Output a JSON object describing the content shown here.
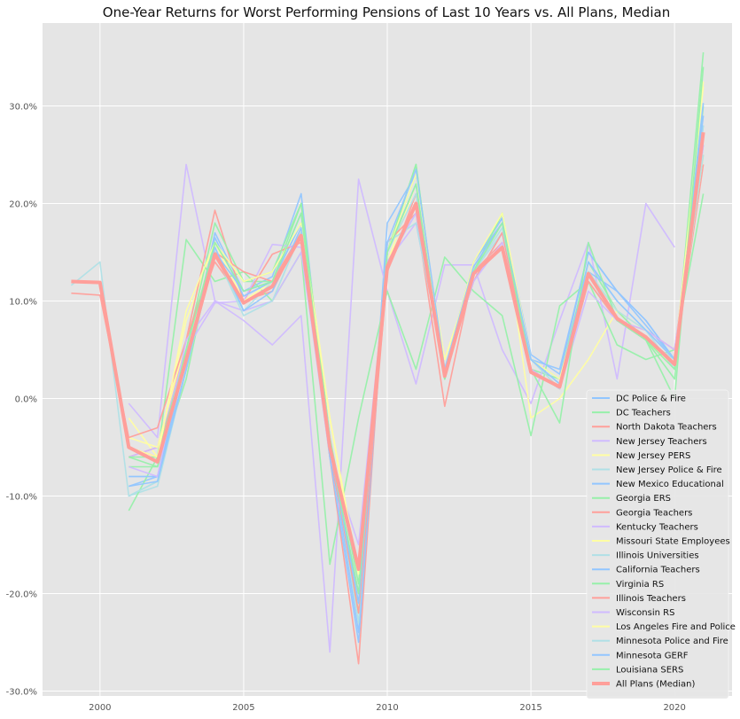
{
  "chart_data": {
    "type": "line",
    "title": "One-Year Returns for Worst Performing Pensions of Last 10 Years vs. All Plans, Median",
    "xlabel": "",
    "ylabel": "",
    "xlim": [
      1998.0,
      2022.0
    ],
    "ylim": [
      -0.305,
      0.385
    ],
    "x_ticks": [
      2000,
      2005,
      2010,
      2015,
      2020
    ],
    "x_tick_labels": [
      "2000",
      "2005",
      "2010",
      "2015",
      "2020"
    ],
    "y_ticks": [
      -0.3,
      -0.2,
      -0.1,
      0.0,
      0.1,
      0.2,
      0.3
    ],
    "y_tick_labels": [
      "-30.0%",
      "-20.0%",
      "-10.0%",
      "0.0%",
      "10.0%",
      "20.0%",
      "30.0%"
    ],
    "grid": true,
    "legend_position": "bottom-right",
    "series": [
      {
        "name": "DC Police & Fire",
        "color": "#92c6ff",
        "x": [
          2001,
          2002,
          2003,
          2004,
          2005,
          2006,
          2007,
          2008,
          2009,
          2010,
          2011,
          2012,
          2013,
          2014,
          2015,
          2016,
          2017,
          2018,
          2019,
          2020,
          2021
        ],
        "y": [
          -0.09,
          -0.08,
          0.03,
          0.17,
          0.11,
          0.125,
          0.21,
          -0.05,
          -0.24,
          0.18,
          0.23,
          0.02,
          0.14,
          0.185,
          0.04,
          0.03,
          0.15,
          0.11,
          0.08,
          0.04,
          0.28
        ]
      },
      {
        "name": "DC Teachers",
        "color": "#97f0aa",
        "x": [
          2001,
          2002,
          2003,
          2004,
          2005,
          2006,
          2007,
          2008,
          2009,
          2010,
          2011,
          2012,
          2013,
          2014,
          2015,
          2016,
          2017,
          2018,
          2019,
          2020,
          2021
        ],
        "y": [
          -0.07,
          -0.07,
          0.02,
          0.16,
          0.12,
          0.12,
          0.2,
          -0.04,
          -0.22,
          0.15,
          0.24,
          0.02,
          0.13,
          0.19,
          0.03,
          0.02,
          0.14,
          0.09,
          0.06,
          0.02,
          0.3
        ]
      },
      {
        "name": "North Dakota Teachers",
        "color": "#ff9f9a",
        "x": [
          2001,
          2002,
          2003,
          2004,
          2005,
          2006,
          2007,
          2008,
          2009,
          2010,
          2011,
          2012,
          2013,
          2014,
          2015,
          2016,
          2017,
          2018,
          2019,
          2020,
          2021
        ],
        "y": [
          -0.05,
          -0.06,
          0.06,
          0.14,
          0.1,
          0.11,
          0.17,
          -0.06,
          -0.2,
          0.13,
          0.21,
          0.03,
          0.12,
          0.17,
          0.03,
          0.01,
          0.12,
          0.08,
          0.06,
          0.04,
          0.25
        ]
      },
      {
        "name": "New Jersey Teachers",
        "color": "#d0bbff",
        "x": [
          2001,
          2002,
          2003,
          2004,
          2005,
          2006,
          2007,
          2008,
          2009,
          2010,
          2011,
          2012,
          2013,
          2014,
          2015,
          2016,
          2017,
          2018,
          2019,
          2020,
          2021
        ],
        "y": [
          -0.005,
          -0.04,
          0.24,
          0.1,
          0.08,
          0.055,
          0.085,
          -0.26,
          0.225,
          0.11,
          0.015,
          0.137,
          0.137,
          0.05,
          -0.005,
          0.08,
          0.16,
          0.02,
          0.2,
          0.155,
          null
        ]
      },
      {
        "name": "New Jersey PERS",
        "color": "#fffea3",
        "x": [
          2001,
          2002,
          2003,
          2004,
          2005,
          2006,
          2007,
          2008,
          2009,
          2010,
          2011,
          2012,
          2013,
          2014,
          2015,
          2016,
          2017,
          2018,
          2019,
          2020,
          2021
        ],
        "y": [
          -0.02,
          -0.06,
          0.08,
          0.16,
          0.1,
          0.12,
          0.19,
          -0.02,
          -0.18,
          0.14,
          0.22,
          0.04,
          0.13,
          0.19,
          -0.02,
          0.0,
          0.04,
          0.09,
          0.06,
          0.03,
          0.325
        ]
      },
      {
        "name": "New Jersey Police & Fire",
        "color": "#b0e0e6",
        "x": [
          2001,
          2002,
          2003,
          2004,
          2005,
          2006,
          2007,
          2008,
          2009,
          2010,
          2011,
          2012,
          2013,
          2014,
          2015,
          2016,
          2017,
          2018,
          2019,
          2020,
          2021
        ],
        "y": [
          -0.1,
          -0.09,
          0.03,
          0.15,
          0.09,
          0.12,
          0.18,
          -0.04,
          -0.23,
          0.15,
          0.21,
          0.03,
          0.13,
          0.17,
          0.04,
          0.01,
          0.14,
          0.1,
          0.07,
          0.03,
          0.27
        ]
      },
      {
        "name": "New Mexico Educational",
        "color": "#92c6ff",
        "x": [
          2001,
          2002,
          2003,
          2004,
          2005,
          2006,
          2007,
          2008,
          2009,
          2010,
          2011,
          2012,
          2013,
          2014,
          2015,
          2016,
          2017,
          2018,
          2019,
          2020,
          2021
        ],
        "y": [
          -0.08,
          -0.08,
          0.04,
          0.15,
          0.11,
          0.12,
          0.18,
          -0.05,
          -0.2,
          0.15,
          0.22,
          0.03,
          0.14,
          0.18,
          0.04,
          0.02,
          0.13,
          0.11,
          0.08,
          0.04,
          0.26
        ]
      },
      {
        "name": "Georgia ERS",
        "color": "#97f0aa",
        "x": [
          2001,
          2002,
          2003,
          2004,
          2005,
          2006,
          2007,
          2008,
          2009,
          2010,
          2011,
          2012,
          2013,
          2014,
          2015,
          2016,
          2017,
          2018,
          2019,
          2020,
          2021
        ],
        "y": [
          -0.115,
          -0.06,
          0.163,
          0.12,
          0.13,
          0.1,
          0.15,
          -0.17,
          -0.02,
          0.11,
          0.03,
          0.145,
          0.11,
          0.085,
          -0.038,
          0.095,
          0.12,
          0.055,
          0.04,
          0.05,
          0.21
        ]
      },
      {
        "name": "Georgia Teachers",
        "color": "#ff9f9a",
        "x": [
          2001,
          2002,
          2003,
          2004,
          2005,
          2006,
          2007,
          2008,
          2009,
          2010,
          2011,
          2012,
          2013,
          2014,
          2015,
          2016,
          2017,
          2018,
          2019,
          2020,
          2021
        ],
        "y": [
          -0.06,
          -0.05,
          0.06,
          0.193,
          0.1,
          0.148,
          0.16,
          -0.06,
          -0.272,
          0.16,
          0.19,
          -0.008,
          0.13,
          0.16,
          0.03,
          0.01,
          0.12,
          0.08,
          0.06,
          0.04,
          0.24
        ]
      },
      {
        "name": "Kentucky Teachers",
        "color": "#d0bbff",
        "x": [
          2001,
          2002,
          2003,
          2004,
          2005,
          2006,
          2007,
          2008,
          2009,
          2010,
          2011,
          2012,
          2013,
          2014,
          2015,
          2016,
          2017,
          2018,
          2019,
          2020,
          2021
        ],
        "y": [
          -0.06,
          -0.05,
          0.05,
          0.098,
          0.1,
          0.158,
          0.155,
          -0.06,
          -0.15,
          0.14,
          0.18,
          0.03,
          0.12,
          0.17,
          0.03,
          0.01,
          0.13,
          0.08,
          0.06,
          0.04,
          0.26
        ]
      },
      {
        "name": "Missouri State Employees",
        "color": "#fffea3",
        "x": [
          2001,
          2002,
          2003,
          2004,
          2005,
          2006,
          2007,
          2008,
          2009,
          2010,
          2011,
          2012,
          2013,
          2014,
          2015,
          2016,
          2017,
          2018,
          2019,
          2020,
          2021
        ],
        "y": [
          -0.04,
          -0.05,
          0.06,
          0.15,
          0.1,
          0.12,
          0.17,
          -0.02,
          -0.19,
          0.14,
          0.2,
          0.04,
          0.13,
          0.18,
          0.03,
          0.01,
          0.12,
          0.08,
          0.06,
          0.04,
          0.25
        ]
      },
      {
        "name": "Illinois Universities",
        "color": "#b0e0e6",
        "x": [
          1999,
          2000,
          2001,
          2002,
          2003,
          2004,
          2005,
          2006,
          2007,
          2008,
          2009,
          2010,
          2011,
          2012,
          2013,
          2014,
          2015,
          2016,
          2017,
          2018,
          2019,
          2020,
          2021
        ],
        "y": [
          0.116,
          0.14,
          -0.1,
          -0.085,
          0.03,
          0.15,
          0.09,
          0.1,
          0.17,
          -0.05,
          -0.21,
          0.14,
          0.19,
          0.03,
          0.12,
          0.17,
          0.03,
          0.01,
          0.12,
          0.08,
          0.06,
          0.04,
          0.25
        ]
      },
      {
        "name": "California Teachers",
        "color": "#92c6ff",
        "x": [
          2001,
          2002,
          2003,
          2004,
          2005,
          2006,
          2007,
          2008,
          2009,
          2010,
          2011,
          2012,
          2013,
          2014,
          2015,
          2016,
          2017,
          2018,
          2019,
          2020,
          2021
        ],
        "y": [
          -0.08,
          -0.08,
          0.03,
          0.165,
          0.105,
          0.12,
          0.19,
          -0.06,
          -0.25,
          0.15,
          0.23,
          0.03,
          0.14,
          0.185,
          0.045,
          0.025,
          0.15,
          0.11,
          0.075,
          0.04,
          0.303
        ]
      },
      {
        "name": "Virginia RS",
        "color": "#97f0aa",
        "x": [
          2001,
          2002,
          2003,
          2004,
          2005,
          2006,
          2007,
          2008,
          2009,
          2010,
          2011,
          2012,
          2013,
          2014,
          2015,
          2016,
          2017,
          2018,
          2019,
          2020,
          2021
        ],
        "y": [
          -0.06,
          -0.06,
          0.05,
          0.18,
          0.12,
          0.13,
          0.2,
          -0.04,
          -0.19,
          0.15,
          0.24,
          0.02,
          0.13,
          0.19,
          0.03,
          0.01,
          0.13,
          0.09,
          0.06,
          0.03,
          0.355
        ]
      },
      {
        "name": "Illinois Teachers",
        "color": "#ff9f9a",
        "x": [
          1999,
          2000,
          2001,
          2002,
          2003,
          2004,
          2005,
          2006,
          2007,
          2008,
          2009,
          2010,
          2011,
          2012,
          2013,
          2014,
          2015,
          2016,
          2017,
          2018,
          2019,
          2020,
          2021
        ],
        "y": [
          0.108,
          0.106,
          -0.04,
          -0.03,
          0.06,
          0.15,
          0.13,
          0.12,
          0.17,
          -0.05,
          -0.22,
          0.13,
          0.2,
          0.03,
          0.12,
          0.17,
          0.03,
          0.01,
          0.12,
          0.08,
          0.07,
          0.05,
          0.27
        ]
      },
      {
        "name": "Wisconsin RS",
        "color": "#d0bbff",
        "x": [
          2001,
          2002,
          2003,
          2004,
          2005,
          2006,
          2007,
          2008,
          2009,
          2010,
          2011,
          2012,
          2013,
          2014,
          2015,
          2016,
          2017,
          2018,
          2019,
          2020,
          2021
        ],
        "y": [
          -0.07,
          -0.08,
          0.06,
          0.1,
          0.09,
          0.1,
          0.15,
          -0.05,
          -0.17,
          0.14,
          0.19,
          0.03,
          0.12,
          0.16,
          0.03,
          0.01,
          0.11,
          0.08,
          0.07,
          0.05,
          0.27
        ]
      },
      {
        "name": "Los Angeles Fire and Police",
        "color": "#fffea3",
        "x": [
          2001,
          2002,
          2003,
          2004,
          2005,
          2006,
          2007,
          2008,
          2009,
          2010,
          2011,
          2012,
          2013,
          2014,
          2015,
          2016,
          2017,
          2018,
          2019,
          2020,
          2021
        ],
        "y": [
          -0.05,
          -0.06,
          0.09,
          0.16,
          0.12,
          0.13,
          0.18,
          -0.02,
          -0.18,
          0.15,
          0.23,
          0.03,
          0.14,
          0.19,
          0.04,
          0.02,
          0.13,
          0.09,
          0.07,
          0.04,
          0.32
        ]
      },
      {
        "name": "Minnesota Police and Fire",
        "color": "#b0e0e6",
        "x": [
          2001,
          2002,
          2003,
          2004,
          2005,
          2006,
          2007,
          2008,
          2009,
          2010,
          2011,
          2012,
          2013,
          2014,
          2015,
          2016,
          2017,
          2018,
          2019,
          2020,
          2021
        ],
        "y": [
          -0.1,
          -0.085,
          0.03,
          0.15,
          0.085,
          0.1,
          0.17,
          -0.05,
          -0.21,
          0.16,
          0.18,
          0.03,
          0.13,
          0.175,
          0.04,
          0.01,
          0.13,
          0.09,
          0.07,
          0.04,
          0.28
        ]
      },
      {
        "name": "Minnesota GERF",
        "color": "#92c6ff",
        "x": [
          2001,
          2002,
          2003,
          2004,
          2005,
          2006,
          2007,
          2008,
          2009,
          2010,
          2011,
          2012,
          2013,
          2014,
          2015,
          2016,
          2017,
          2018,
          2019,
          2020,
          2021
        ],
        "y": [
          -0.09,
          -0.085,
          0.03,
          0.155,
          0.09,
          0.11,
          0.175,
          -0.05,
          -0.21,
          0.16,
          0.235,
          0.03,
          0.135,
          0.18,
          0.04,
          0.015,
          0.14,
          0.1,
          0.07,
          0.04,
          0.29
        ]
      },
      {
        "name": "Louisiana SERS",
        "color": "#97f0aa",
        "x": [
          2001,
          2002,
          2003,
          2004,
          2005,
          2006,
          2007,
          2008,
          2009,
          2010,
          2011,
          2012,
          2013,
          2014,
          2015,
          2016,
          2017,
          2018,
          2019,
          2020,
          2021
        ],
        "y": [
          -0.06,
          -0.07,
          0.05,
          0.16,
          0.11,
          0.12,
          0.19,
          -0.05,
          -0.2,
          0.15,
          0.22,
          0.02,
          0.13,
          0.18,
          0.03,
          -0.025,
          0.16,
          0.08,
          0.06,
          0.0,
          0.34
        ]
      },
      {
        "name": "All Plans (Median)",
        "color": "#ff9f9a",
        "bold": true,
        "x": [
          1999,
          2000,
          2001,
          2002,
          2003,
          2004,
          2005,
          2006,
          2007,
          2008,
          2009,
          2010,
          2011,
          2012,
          2013,
          2014,
          2015,
          2016,
          2017,
          2018,
          2019,
          2020,
          2021
        ],
        "y": [
          0.12,
          0.119,
          -0.05,
          -0.065,
          0.04,
          0.148,
          0.098,
          0.115,
          0.167,
          -0.05,
          -0.175,
          0.135,
          0.2,
          0.023,
          0.128,
          0.155,
          0.027,
          0.012,
          0.128,
          0.082,
          0.063,
          0.035,
          0.273
        ]
      }
    ]
  }
}
